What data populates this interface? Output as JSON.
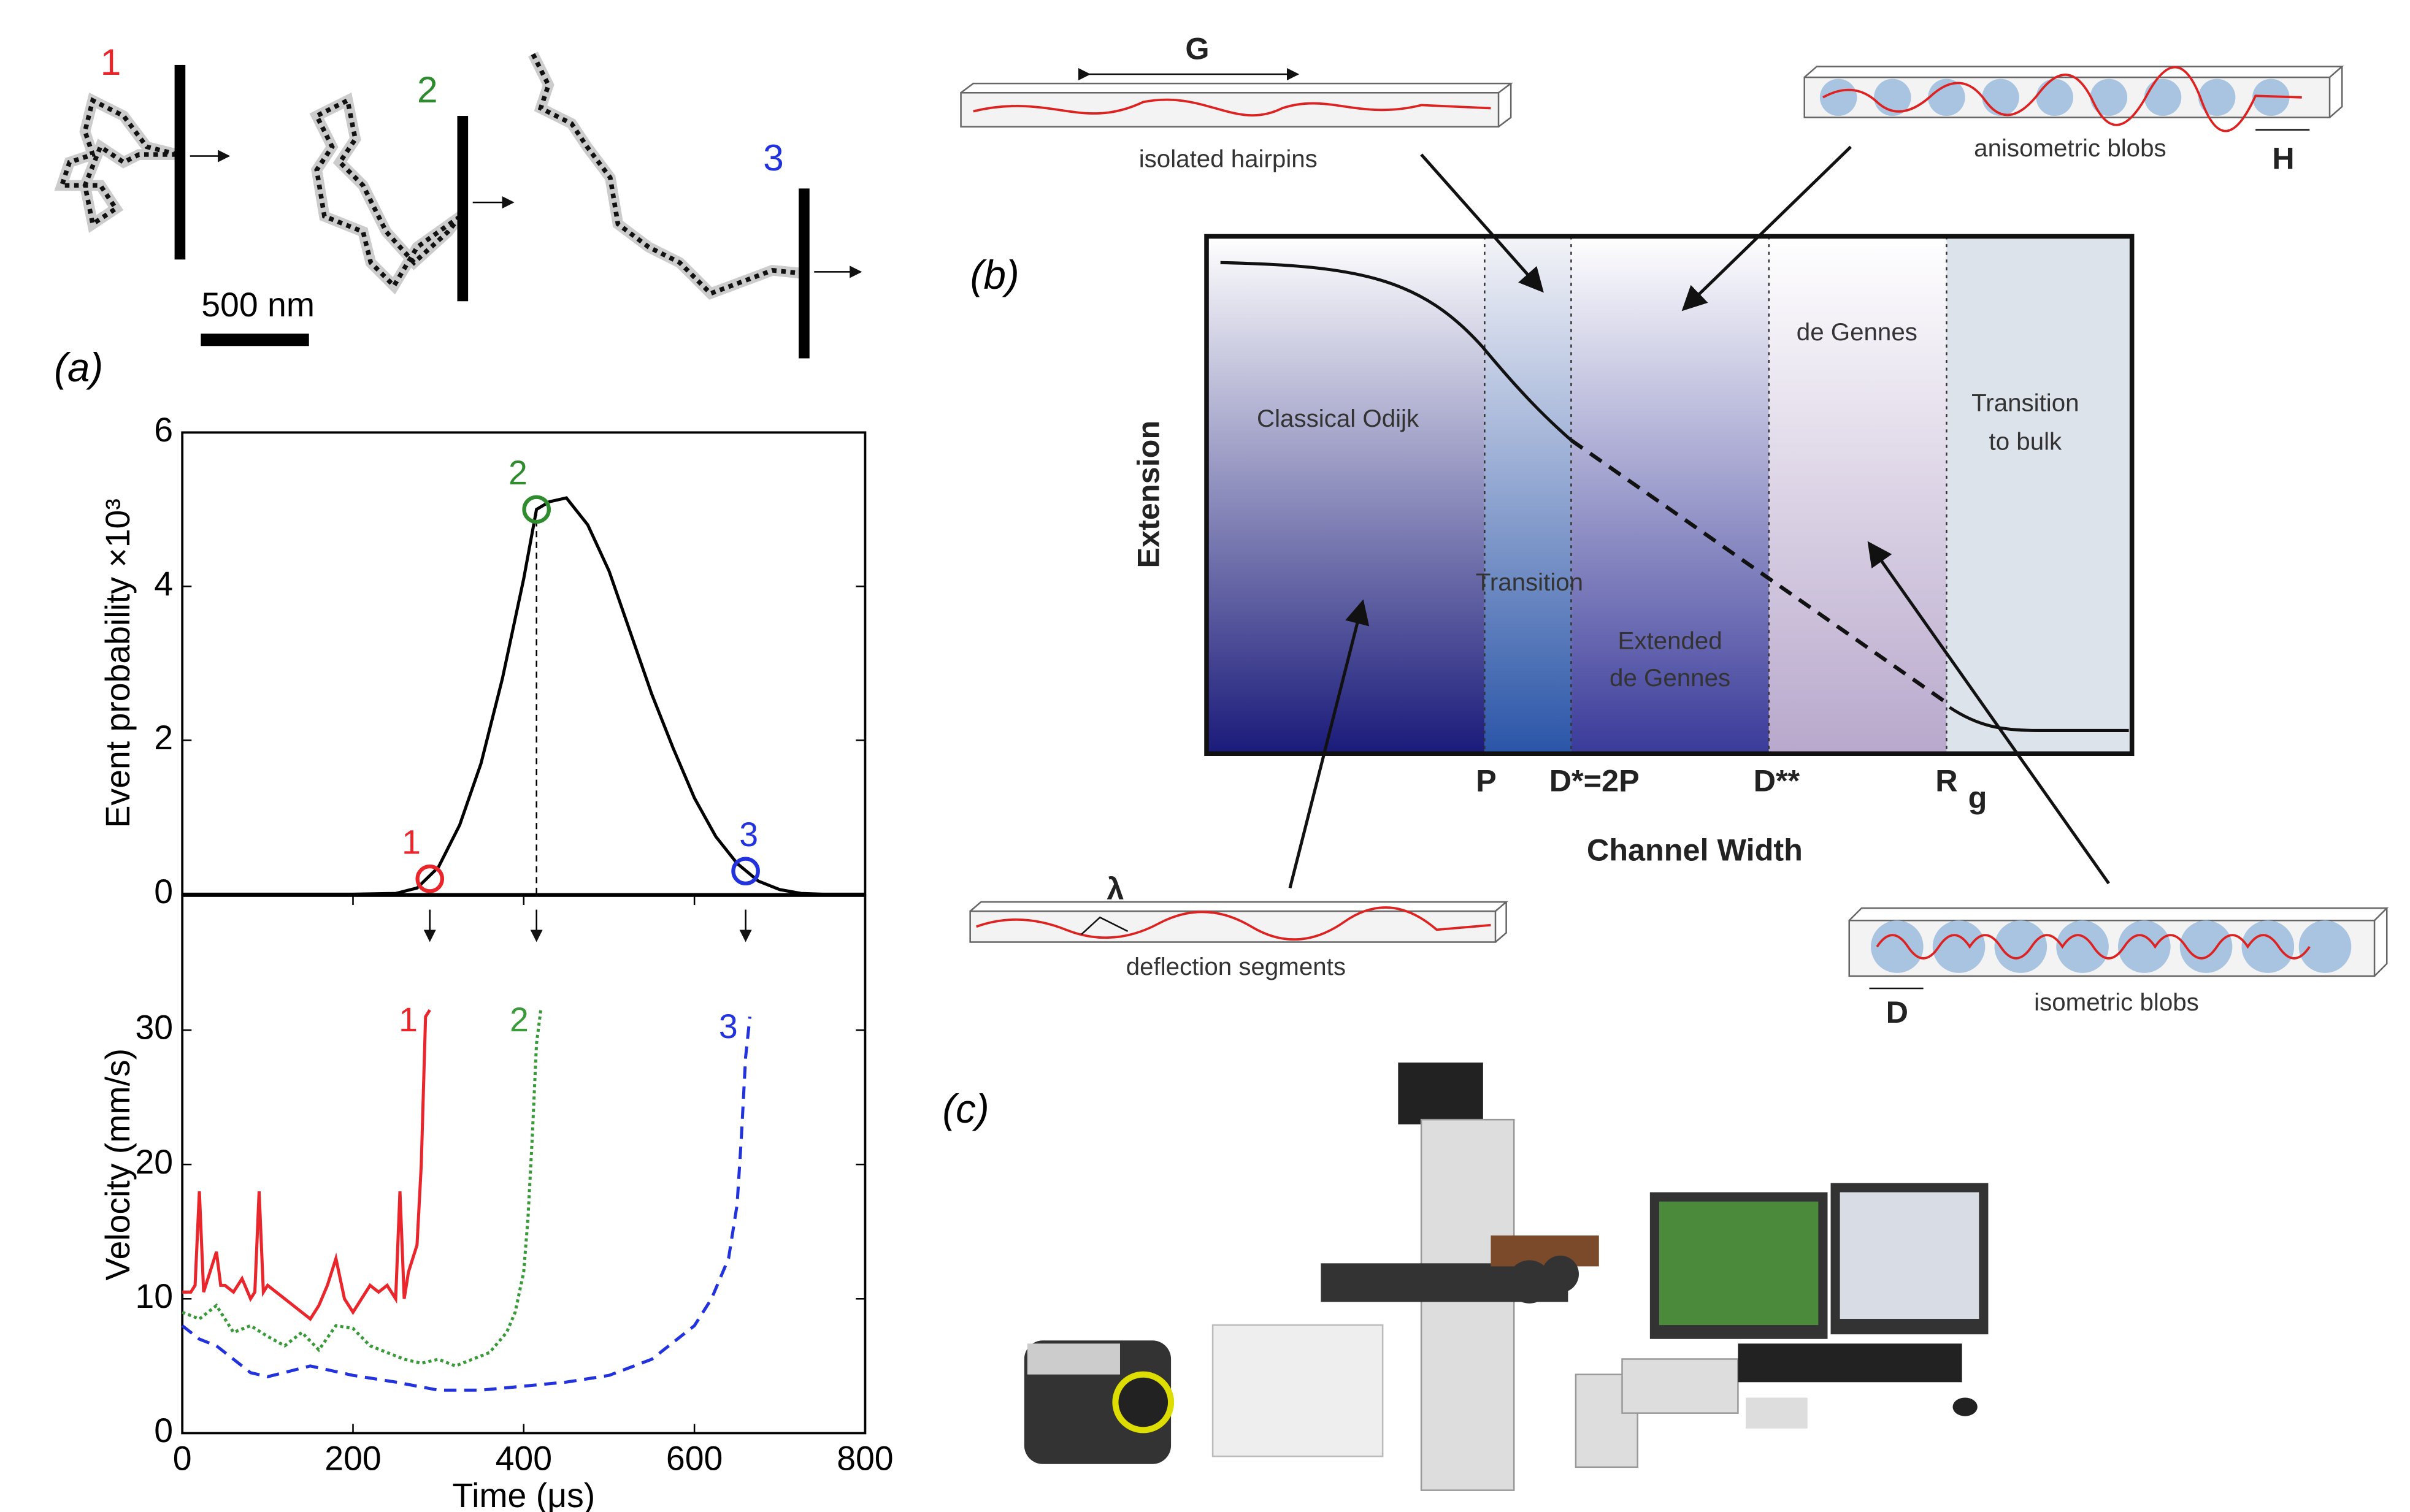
{
  "panel_labels": [
    "(a)",
    "(b)",
    "(c)"
  ],
  "trajectories": {
    "labels": [
      "1",
      "2",
      "3"
    ],
    "scale_bar": "500 nm"
  },
  "chart_data": [
    {
      "type": "line",
      "ylabel": "Event probability ×10³",
      "xlim": [
        0,
        800
      ],
      "ylim": [
        0,
        6
      ],
      "yticks": [
        0,
        2,
        4,
        6
      ],
      "series": [
        {
          "color": "#000000",
          "x": [
            0,
            200,
            250,
            275,
            300,
            325,
            350,
            375,
            400,
            415,
            430,
            450,
            475,
            500,
            525,
            550,
            575,
            600,
            625,
            650,
            675,
            700,
            725,
            750,
            800
          ],
          "values": [
            0,
            0,
            0.01,
            0.08,
            0.35,
            0.9,
            1.7,
            2.8,
            4.1,
            5.0,
            5.1,
            5.15,
            4.8,
            4.2,
            3.4,
            2.6,
            1.9,
            1.25,
            0.75,
            0.4,
            0.17,
            0.06,
            0.01,
            0,
            0
          ]
        }
      ],
      "points": [
        {
          "x": 290,
          "y": 0.2,
          "label": "1",
          "color": "#e8262b"
        },
        {
          "x": 415,
          "y": 5.0,
          "label": "2",
          "color": "#2e8b2e"
        },
        {
          "x": 660,
          "y": 0.3,
          "label": "3",
          "color": "#2233dd"
        }
      ]
    },
    {
      "type": "line",
      "xlabel": "Time (μs)",
      "ylabel": "Velocity (mm/s)",
      "xlim": [
        0,
        800
      ],
      "ylim": [
        0,
        40
      ],
      "xticks": [
        0,
        200,
        400,
        600,
        800
      ],
      "yticks": [
        0,
        10,
        20,
        30
      ],
      "series": [
        {
          "name": "1",
          "color": "#e8262b",
          "dash": "solid",
          "x": [
            0,
            10,
            15,
            20,
            25,
            30,
            40,
            45,
            50,
            60,
            70,
            80,
            85,
            90,
            95,
            100,
            120,
            140,
            150,
            160,
            170,
            180,
            190,
            200,
            210,
            220,
            230,
            240,
            250,
            255,
            260,
            265,
            270,
            275,
            280,
            285,
            290
          ],
          "values": [
            10.5,
            10.5,
            11,
            18,
            10.5,
            11.5,
            13.5,
            11,
            11,
            10.5,
            11.5,
            10,
            10.5,
            18,
            10.5,
            11,
            10,
            9,
            8.5,
            9.5,
            11,
            13,
            10,
            9,
            10,
            11,
            10.5,
            11,
            10,
            18,
            10,
            12,
            13,
            14,
            20,
            31,
            31.5
          ]
        },
        {
          "name": "2",
          "color": "#3a9a3a",
          "dash": "2 2",
          "x": [
            0,
            20,
            40,
            60,
            80,
            100,
            120,
            140,
            160,
            180,
            200,
            220,
            240,
            260,
            280,
            300,
            320,
            340,
            360,
            380,
            390,
            400,
            405,
            410,
            415,
            420
          ],
          "values": [
            9,
            8.5,
            9.5,
            7.5,
            8,
            7.2,
            6.5,
            7.5,
            6.2,
            8,
            7.8,
            6.5,
            6,
            5.5,
            5.2,
            5.5,
            5,
            5.5,
            6,
            7.5,
            9,
            12,
            16,
            22,
            29,
            31.5
          ]
        },
        {
          "name": "3",
          "color": "#2233dd",
          "dash": "8 5",
          "x": [
            0,
            20,
            40,
            60,
            80,
            100,
            150,
            200,
            250,
            300,
            350,
            400,
            450,
            500,
            550,
            600,
            620,
            640,
            650,
            655,
            660,
            665
          ],
          "values": [
            8,
            7,
            6.5,
            5.5,
            4.5,
            4.2,
            5,
            4.3,
            3.8,
            3.2,
            3.2,
            3.5,
            3.8,
            4.3,
            5.5,
            8,
            10,
            13,
            17,
            22,
            28,
            31
          ]
        }
      ]
    }
  ],
  "diagram": {
    "G": "G",
    "isolated_hairpins": "isolated hairpins",
    "anisometric_blobs": "anisometric blobs",
    "H": "H",
    "y_axis": "Extension",
    "x_axis": "Channel Width",
    "regions": [
      "Classical Odijk",
      "Transition",
      "Extended",
      "de Gennes",
      "de Gennes",
      "Transition",
      "to bulk"
    ],
    "x_marks": [
      "P",
      "D*=2P",
      "D**",
      "R"
    ],
    "x_mark_sub": "g",
    "lambda": "λ",
    "deflection_segments": "deflection segments",
    "D": "D",
    "isometric_blobs": "isometric blobs"
  }
}
